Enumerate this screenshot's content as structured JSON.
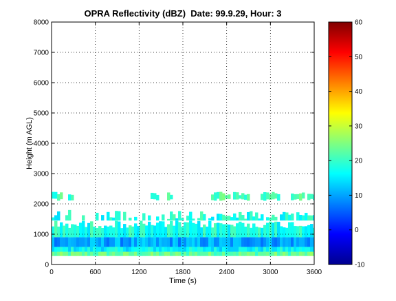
{
  "chart_data": {
    "type": "heatmap",
    "title": "OPRA Reflectivity (dBZ)  Date: 99.9.29, Hour: 3",
    "xlabel": "Time (s)",
    "ylabel": "Height (m AGL)",
    "xlim": [
      0,
      3600
    ],
    "ylim": [
      0,
      8000
    ],
    "xticks": [
      0,
      600,
      1200,
      1800,
      2400,
      3000,
      3600
    ],
    "xtick_labels": [
      "0",
      "600",
      "1200",
      "1800",
      "2400",
      "3000",
      "3600"
    ],
    "yticks": [
      0,
      1000,
      2000,
      3000,
      4000,
      5000,
      6000,
      7000,
      8000
    ],
    "ytick_labels": [
      "0",
      "1000",
      "2000",
      "3000",
      "4000",
      "5000",
      "6000",
      "7000",
      "8000"
    ],
    "grid": true,
    "colorbar": {
      "colormap": "jet",
      "range": [
        -10,
        60
      ],
      "ticks": [
        -10,
        0,
        10,
        20,
        30,
        40,
        50,
        60
      ],
      "tick_labels": [
        "-10",
        "0",
        "10",
        "20",
        "30",
        "40",
        "50",
        "60"
      ]
    },
    "layers": [
      {
        "name": "",
        "height_range": [
          280,
          420
        ],
        "dbz": 23
      },
      {
        "name": "",
        "height_range": [
          420,
          580
        ],
        "dbz": 16
      },
      {
        "name": "",
        "height_range": [
          580,
          900
        ],
        "dbz": 10
      },
      {
        "name": "",
        "height_range": [
          900,
          1450
        ],
        "dbz": 18
      },
      {
        "name": "",
        "height_range": [
          1450,
          1800
        ],
        "dbz": 18
      },
      {
        "name": "",
        "height_range": [
          2100,
          2400
        ],
        "dbz": 21
      }
    ]
  }
}
